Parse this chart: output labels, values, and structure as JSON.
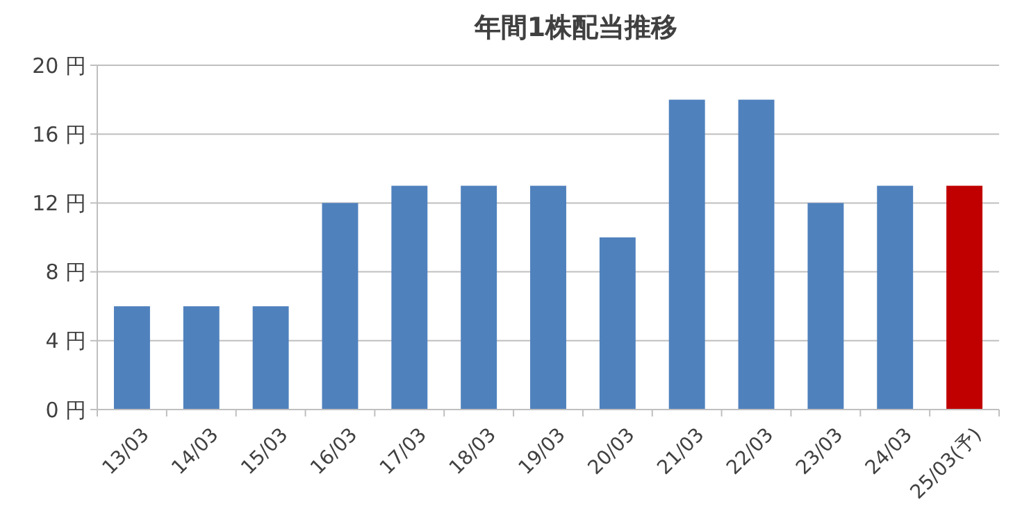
{
  "chart_data": {
    "type": "bar",
    "title": "年間1株配当推移",
    "categories": [
      "13/03",
      "14/03",
      "15/03",
      "16/03",
      "17/03",
      "18/03",
      "19/03",
      "20/03",
      "21/03",
      "22/03",
      "23/03",
      "24/03",
      "25/03(予)"
    ],
    "values": [
      6,
      6,
      6,
      12,
      13,
      13,
      13,
      10,
      18,
      18,
      12,
      13,
      13
    ],
    "colors": [
      "#4f81bd",
      "#4f81bd",
      "#4f81bd",
      "#4f81bd",
      "#4f81bd",
      "#4f81bd",
      "#4f81bd",
      "#4f81bd",
      "#4f81bd",
      "#4f81bd",
      "#4f81bd",
      "#4f81bd",
      "#c00000"
    ],
    "ylim": [
      0,
      20
    ],
    "yticks": [
      {
        "value": 0,
        "label": "0 円"
      },
      {
        "value": 4,
        "label": "4 円"
      },
      {
        "value": 8,
        "label": "8 円"
      },
      {
        "value": 12,
        "label": "12 円"
      },
      {
        "value": 16,
        "label": "16 円"
      },
      {
        "value": 20,
        "label": "20 円"
      }
    ],
    "grid": "y"
  }
}
